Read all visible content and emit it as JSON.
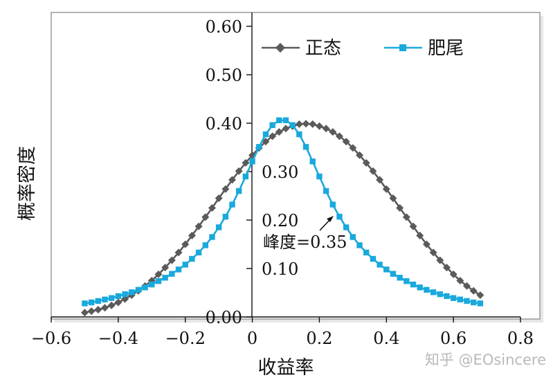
{
  "chart_data": {
    "type": "line",
    "ylabel": "概率密度",
    "xlabel": "收益率",
    "xlim": [
      -0.6,
      0.8
    ],
    "ylim": [
      0.0,
      0.6
    ],
    "x_ticks": [
      "−0.6",
      "−0.4",
      "−0.2",
      "0",
      "0.2",
      "0.4",
      "0.6",
      "0.8"
    ],
    "y_ticks": [
      "0.00",
      "0.10",
      "0.20",
      "0.30",
      "0.40",
      "0.50",
      "0.60"
    ],
    "legend_position": "top-right",
    "grid": false,
    "series": [
      {
        "name": "正态",
        "color": "#5a5a5a",
        "marker": "diamond",
        "x": [
          -0.5,
          -0.48,
          -0.46,
          -0.44,
          -0.42,
          -0.4,
          -0.38,
          -0.36,
          -0.34,
          -0.32,
          -0.3,
          -0.28,
          -0.26,
          -0.24,
          -0.22,
          -0.2,
          -0.18,
          -0.16,
          -0.14,
          -0.12,
          -0.1,
          -0.08,
          -0.06,
          -0.04,
          -0.02,
          0.0,
          0.02,
          0.04,
          0.06,
          0.08,
          0.1,
          0.12,
          0.14,
          0.16,
          0.18,
          0.2,
          0.22,
          0.24,
          0.26,
          0.28,
          0.3,
          0.32,
          0.34,
          0.36,
          0.38,
          0.4,
          0.42,
          0.44,
          0.46,
          0.48,
          0.5,
          0.52,
          0.54,
          0.56,
          0.58,
          0.6,
          0.62,
          0.64,
          0.66,
          0.68
        ],
        "y": [
          0.009,
          0.012,
          0.015,
          0.019,
          0.024,
          0.03,
          0.037,
          0.045,
          0.054,
          0.064,
          0.075,
          0.088,
          0.102,
          0.117,
          0.133,
          0.15,
          0.168,
          0.187,
          0.206,
          0.225,
          0.245,
          0.264,
          0.283,
          0.301,
          0.318,
          0.334,
          0.349,
          0.362,
          0.373,
          0.382,
          0.389,
          0.394,
          0.398,
          0.399,
          0.398,
          0.394,
          0.389,
          0.382,
          0.373,
          0.362,
          0.349,
          0.334,
          0.318,
          0.301,
          0.283,
          0.264,
          0.245,
          0.225,
          0.206,
          0.187,
          0.168,
          0.15,
          0.133,
          0.117,
          0.102,
          0.088,
          0.075,
          0.064,
          0.054,
          0.045
        ]
      },
      {
        "name": "肥尾",
        "color": "#19a9dc",
        "marker": "square",
        "x": [
          -0.5,
          -0.48,
          -0.46,
          -0.44,
          -0.42,
          -0.4,
          -0.38,
          -0.36,
          -0.34,
          -0.32,
          -0.3,
          -0.28,
          -0.26,
          -0.24,
          -0.22,
          -0.2,
          -0.18,
          -0.16,
          -0.14,
          -0.12,
          -0.1,
          -0.08,
          -0.06,
          -0.04,
          -0.02,
          0.0,
          0.02,
          0.04,
          0.06,
          0.08,
          0.1,
          0.12,
          0.14,
          0.16,
          0.18,
          0.2,
          0.22,
          0.24,
          0.26,
          0.28,
          0.3,
          0.32,
          0.34,
          0.36,
          0.38,
          0.4,
          0.42,
          0.44,
          0.46,
          0.48,
          0.5,
          0.52,
          0.54,
          0.56,
          0.58,
          0.6,
          0.62,
          0.64,
          0.66,
          0.68
        ],
        "y": [
          0.028,
          0.03,
          0.033,
          0.036,
          0.039,
          0.043,
          0.047,
          0.051,
          0.056,
          0.061,
          0.067,
          0.074,
          0.081,
          0.089,
          0.098,
          0.108,
          0.12,
          0.133,
          0.148,
          0.165,
          0.185,
          0.207,
          0.232,
          0.26,
          0.29,
          0.321,
          0.351,
          0.377,
          0.396,
          0.406,
          0.406,
          0.396,
          0.377,
          0.351,
          0.321,
          0.29,
          0.26,
          0.232,
          0.207,
          0.185,
          0.165,
          0.148,
          0.133,
          0.12,
          0.108,
          0.098,
          0.089,
          0.081,
          0.074,
          0.067,
          0.061,
          0.056,
          0.051,
          0.047,
          0.043,
          0.039,
          0.036,
          0.033,
          0.03,
          0.028
        ]
      }
    ],
    "annotations": [
      {
        "text": "峰度=0.35",
        "x": 0.25,
        "y": 0.2,
        "arrow": true
      }
    ]
  },
  "watermark": "知乎 @EOsincere"
}
